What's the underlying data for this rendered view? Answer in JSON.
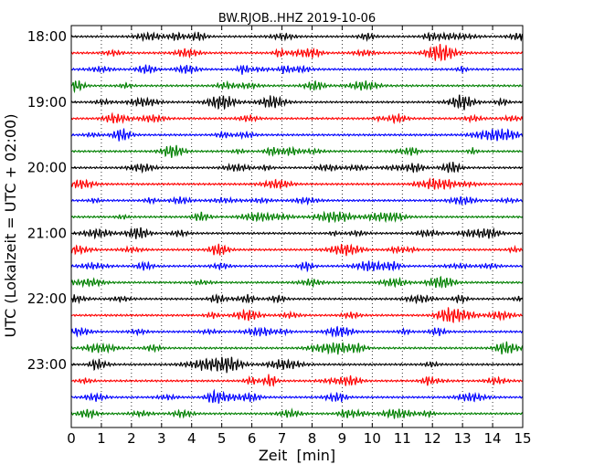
{
  "chart_data": {
    "type": "line",
    "title": "BW.RJOB..HHZ 2019-10-06",
    "xlabel": "Zeit  [min]",
    "ylabel": "UTC (Lokalzeit = UTC + 02:00)",
    "xlim": [
      0,
      15
    ],
    "x_ticks": [
      0,
      1,
      2,
      3,
      4,
      5,
      6,
      7,
      8,
      9,
      10,
      11,
      12,
      13,
      14,
      15
    ],
    "y_tick_labels": [
      "18:00",
      "19:00",
      "20:00",
      "21:00",
      "22:00",
      "23:00"
    ],
    "grid": "vertical dotted lines at each minute",
    "trace_colors": [
      "#000000",
      "#ff0000",
      "#0000ff",
      "#008000"
    ],
    "series": [
      {
        "start": "18:00",
        "color": "#000000"
      },
      {
        "start": "18:15",
        "color": "#ff0000"
      },
      {
        "start": "18:30",
        "color": "#0000ff"
      },
      {
        "start": "18:45",
        "color": "#008000"
      },
      {
        "start": "19:00",
        "color": "#000000"
      },
      {
        "start": "19:15",
        "color": "#ff0000"
      },
      {
        "start": "19:30",
        "color": "#0000ff"
      },
      {
        "start": "19:45",
        "color": "#008000"
      },
      {
        "start": "20:00",
        "color": "#000000"
      },
      {
        "start": "20:15",
        "color": "#ff0000"
      },
      {
        "start": "20:30",
        "color": "#0000ff"
      },
      {
        "start": "20:45",
        "color": "#008000"
      },
      {
        "start": "21:00",
        "color": "#000000"
      },
      {
        "start": "21:15",
        "color": "#ff0000"
      },
      {
        "start": "21:30",
        "color": "#0000ff"
      },
      {
        "start": "21:45",
        "color": "#008000"
      },
      {
        "start": "22:00",
        "color": "#000000"
      },
      {
        "start": "22:15",
        "color": "#ff0000"
      },
      {
        "start": "22:30",
        "color": "#0000ff"
      },
      {
        "start": "22:45",
        "color": "#008000"
      },
      {
        "start": "23:00",
        "color": "#000000"
      },
      {
        "start": "23:15",
        "color": "#ff0000"
      },
      {
        "start": "23:30",
        "color": "#0000ff"
      },
      {
        "start": "23:45",
        "color": "#008000"
      }
    ]
  }
}
